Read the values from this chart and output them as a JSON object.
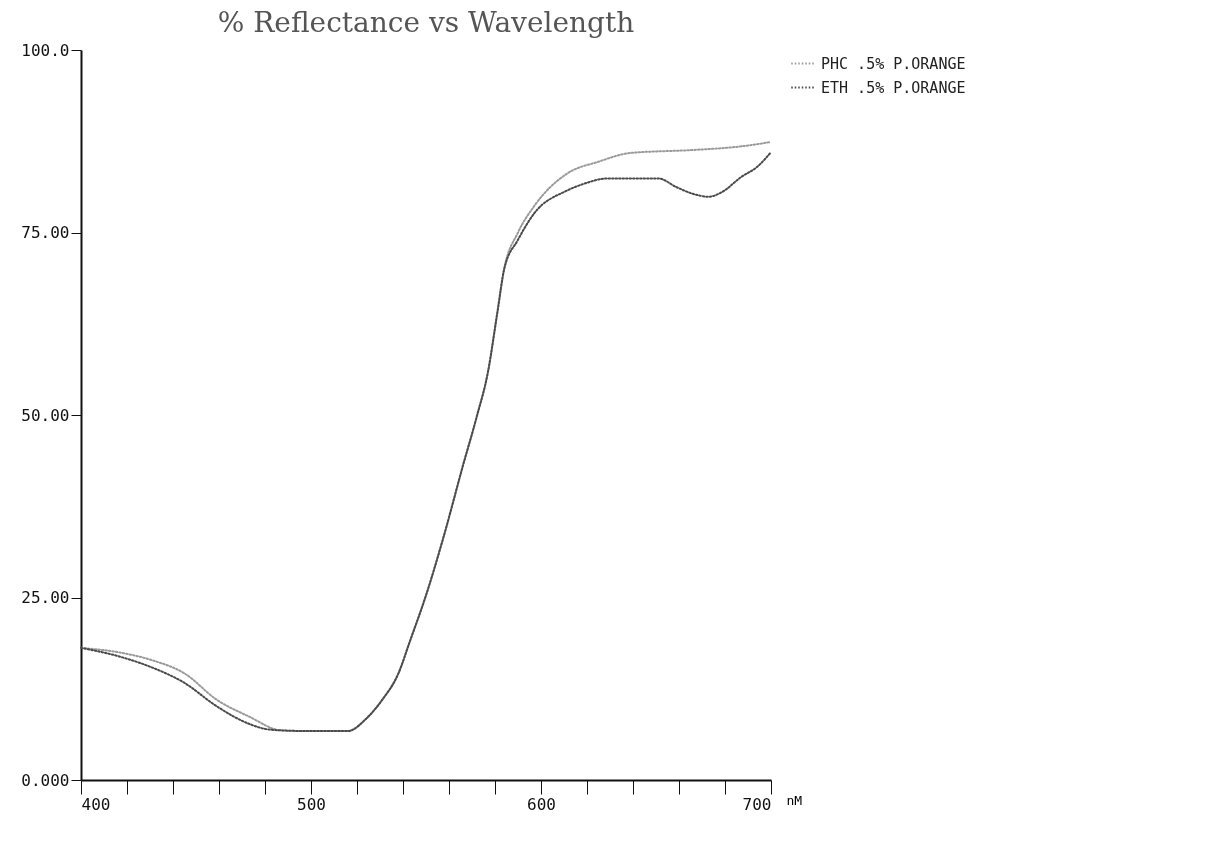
{
  "chart_data": {
    "type": "line",
    "title": "% Reflectance vs Wavelength",
    "xlabel": "nM",
    "series": [
      {
        "name": "PHC .5% P.ORANGE",
        "color": "#9a9a9a",
        "x": [
          400,
          418,
          431,
          445,
          459,
          473,
          487,
          500,
          516,
          524,
          531,
          538,
          543,
          550,
          558,
          566,
          572,
          577,
          581,
          584,
          590,
          597,
          611,
          625,
          639,
          666,
          687,
          700
        ],
        "values": [
          18.1,
          17.4,
          16.4,
          14.6,
          11,
          8.7,
          6.8,
          6.7,
          6.7,
          8.4,
          11,
          14.6,
          19,
          25.3,
          33.7,
          43,
          49.7,
          56,
          64,
          70,
          75,
          78.6,
          83,
          84.7,
          85.9,
          86.3,
          86.8,
          87.4
        ]
      },
      {
        "name": "ETH .5% P.ORANGE",
        "color": "#4a4a4a",
        "x": [
          400,
          418,
          431,
          445,
          459,
          473,
          480,
          487,
          500,
          516,
          524,
          531,
          538,
          543,
          550,
          558,
          566,
          572,
          577,
          581,
          584,
          590,
          597,
          611,
          618,
          629,
          651,
          659,
          666,
          673,
          679,
          687,
          694,
          700
        ],
        "values": [
          18.1,
          16.8,
          15.4,
          13.3,
          10.1,
          7.7,
          7,
          6.8,
          6.7,
          6.7,
          8.4,
          11,
          14.6,
          19,
          25.3,
          33.7,
          43,
          49.7,
          56,
          64,
          70,
          74,
          77.6,
          80.7,
          81.6,
          82.4,
          82.4,
          81.2,
          80.3,
          79.9,
          80.6,
          82.6,
          84,
          86
        ]
      }
    ],
    "xlim": [
      400,
      700
    ],
    "xticks": [
      400,
      {
        "value": 420,
        "label": null
      },
      {
        "value": 440,
        "label": null
      },
      {
        "value": 460,
        "label": null
      },
      {
        "value": 480,
        "label": null
      },
      500,
      {
        "value": 520,
        "label": null
      },
      {
        "value": 540,
        "label": null
      },
      {
        "value": 560,
        "label": null
      },
      {
        "value": 580,
        "label": null
      },
      600,
      {
        "value": 620,
        "label": null
      },
      {
        "value": 640,
        "label": null
      },
      {
        "value": 660,
        "label": null
      },
      {
        "value": 680,
        "label": null
      },
      700
    ],
    "ylim": [
      0,
      100
    ],
    "yticks": [
      {
        "value": 0,
        "label": "0.000"
      },
      {
        "value": 25,
        "label": "25.00"
      },
      {
        "value": 50,
        "label": "50.00"
      },
      {
        "value": 75,
        "label": "75.00"
      },
      {
        "value": 100,
        "label": "100.0"
      }
    ],
    "legend": "top right",
    "line_style": "dotted",
    "marker": "none"
  }
}
